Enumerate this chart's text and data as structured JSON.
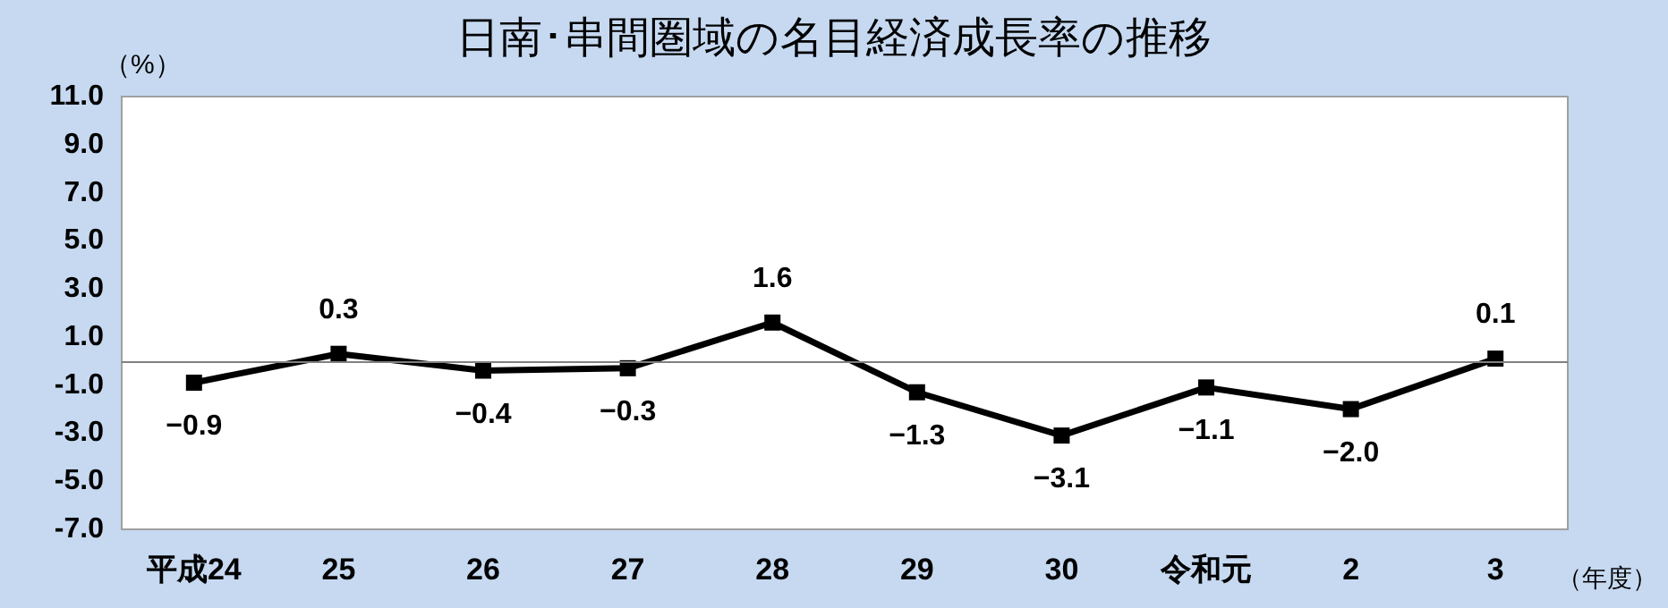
{
  "chart_data": {
    "type": "line",
    "title": "日南･串間圏域の名目経済成長率の推移",
    "ylabel": "（%）",
    "xlabel": "（年度）",
    "categories": [
      "平成24",
      "25",
      "26",
      "27",
      "28",
      "29",
      "30",
      "令和元",
      "2",
      "3"
    ],
    "series": [
      {
        "color": "#000000",
        "values": [
          -0.9,
          0.3,
          -0.4,
          -0.3,
          1.6,
          -1.3,
          -3.1,
          -1.1,
          -2.0,
          0.1
        ],
        "value_labels": [
          "−0.9",
          "0.3",
          "−0.4",
          "−0.3",
          "1.6",
          "−1.3",
          "−3.1",
          "−1.1",
          "−2.0",
          "0.1"
        ]
      }
    ],
    "ylim": [
      -7,
      11
    ],
    "yticks": [
      {
        "value": -7,
        "label": "-7.0"
      },
      {
        "value": -5,
        "label": "-5.0"
      },
      {
        "value": -3,
        "label": "-3.0"
      },
      {
        "value": -1,
        "label": "-1.0"
      },
      {
        "value": 1,
        "label": "1.0"
      },
      {
        "value": 3,
        "label": "3.0"
      },
      {
        "value": 5,
        "label": "5.0"
      },
      {
        "value": 7,
        "label": "7.0"
      },
      {
        "value": 9,
        "label": "9.0"
      },
      {
        "value": 11,
        "label": "11.0"
      }
    ],
    "ref_lines": [
      {
        "axis": "y",
        "value": 0,
        "color": "#808080"
      }
    ],
    "marker": "square",
    "line_style": "solid",
    "grid": false
  }
}
